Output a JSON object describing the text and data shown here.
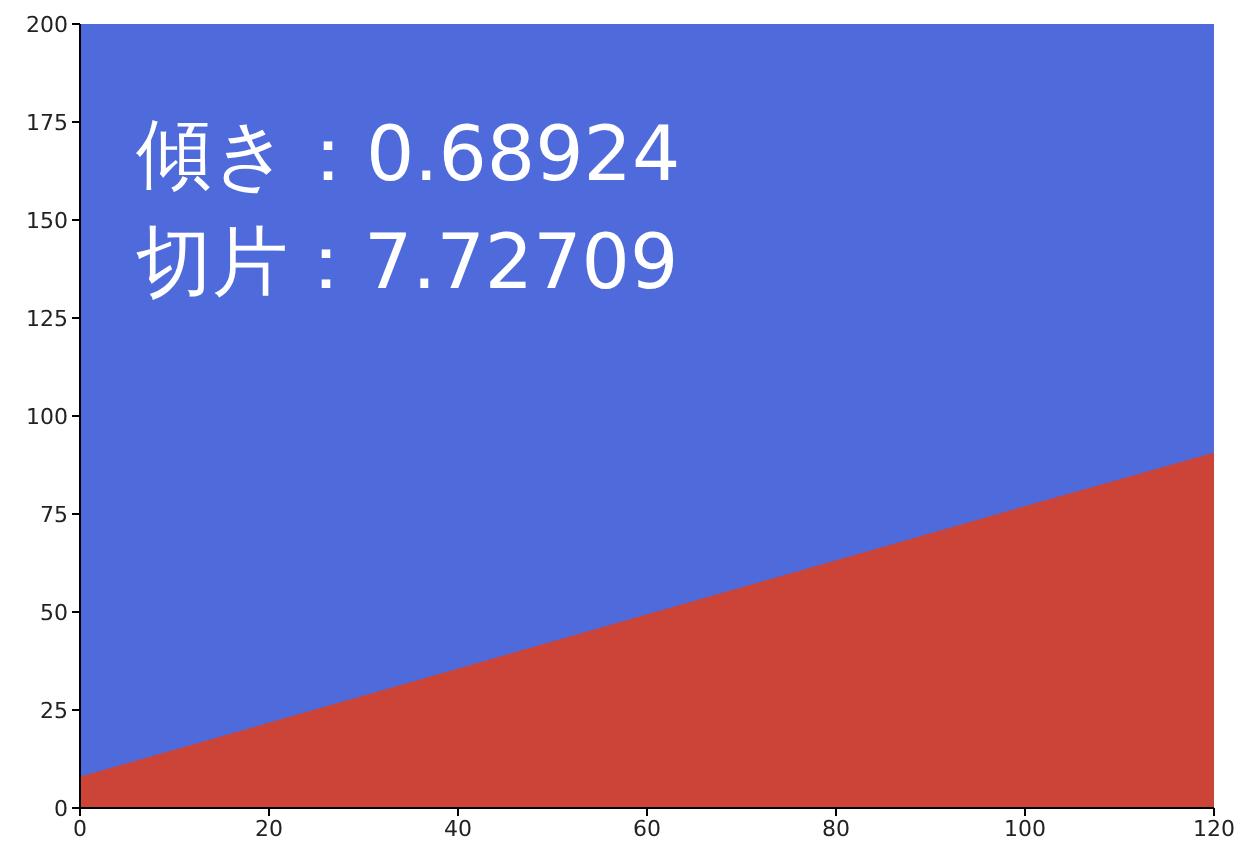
{
  "chart_data": {
    "type": "area",
    "x": [
      0,
      20,
      40,
      60,
      80,
      100,
      120
    ],
    "series": [
      {
        "color": "#cc4438",
        "values": [
          7.7,
          21.5,
          35.3,
          49.1,
          62.9,
          76.7,
          90.4
        ]
      }
    ],
    "bands": [
      {
        "axis": "y",
        "from": 0,
        "to": 200,
        "color": "#4f6bdb"
      }
    ],
    "annotations": [
      "傾き：0.68924",
      "切片：7.72709"
    ],
    "xlim": [
      0,
      120
    ],
    "xticks": [
      0,
      20,
      40,
      60,
      80,
      100,
      120
    ],
    "ylim": [
      0,
      200
    ],
    "yticks": [
      0,
      25,
      50,
      75,
      100,
      125,
      150,
      175,
      200
    ],
    "grid": false,
    "legend": false
  }
}
